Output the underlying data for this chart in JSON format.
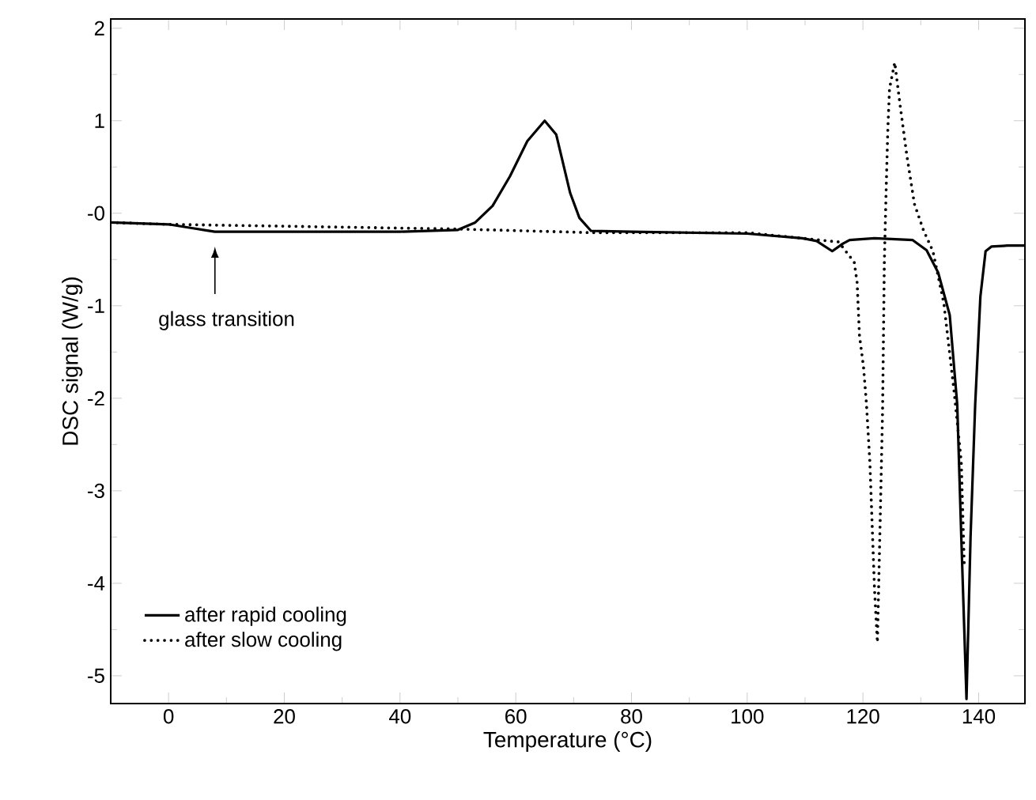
{
  "chart_data": {
    "type": "line",
    "xlabel": "Temperature (°C)",
    "ylabel": "DSC signal (W/g)",
    "xlim": [
      -10,
      148
    ],
    "ylim": [
      -5.3,
      2.1
    ],
    "xticks": [
      0,
      20,
      40,
      60,
      80,
      100,
      120,
      140
    ],
    "yticks": [
      -5,
      -4,
      -3,
      -2,
      -1,
      {
        "value": 0,
        "label": "-0"
      },
      1,
      2
    ],
    "legend": "bottom left",
    "grid": false,
    "marker": "none",
    "annotations": [
      "glass transition"
    ],
    "series": [
      {
        "name": "after rapid cooling",
        "color": "#000000",
        "line_style": "solid",
        "x": [
          -10,
          0,
          4,
          8,
          20,
          40,
          50,
          53,
          56,
          59,
          62,
          65,
          67,
          69.4,
          71,
          73,
          80,
          100,
          109.5,
          112,
          114.7,
          116.5,
          117.7,
          122,
          128.6,
          131,
          133,
          135,
          136.3,
          137,
          137.9,
          138.6,
          139.4,
          140.3,
          141.2,
          142.2,
          145,
          148
        ],
        "values": [
          -0.1,
          -0.12,
          -0.16,
          -0.2,
          -0.2,
          -0.2,
          -0.18,
          -0.1,
          0.08,
          0.4,
          0.78,
          1.0,
          0.85,
          0.22,
          -0.05,
          -0.19,
          -0.2,
          -0.22,
          -0.27,
          -0.3,
          -0.41,
          -0.33,
          -0.29,
          -0.27,
          -0.29,
          -0.4,
          -0.64,
          -1.1,
          -2.07,
          -3.5,
          -5.25,
          -3.5,
          -2.07,
          -0.9,
          -0.41,
          -0.36,
          -0.35,
          -0.35
        ]
      },
      {
        "name": "after slow cooling",
        "color": "#000000",
        "line_style": "dotted",
        "x": [
          -10,
          0,
          10,
          30,
          49.5,
          67.5,
          73,
          100,
          109.5,
          115.8,
          118.5,
          119,
          119.4,
          120.1,
          120.6,
          121.2,
          122,
          122.5,
          123,
          123.4,
          123.7,
          124,
          124.3,
          124.6,
          125.5,
          126.4,
          127.6,
          128.9,
          130.5,
          132.1,
          134,
          135.8,
          137,
          137.5
        ],
        "values": [
          -0.1,
          -0.12,
          -0.13,
          -0.15,
          -0.17,
          -0.2,
          -0.21,
          -0.21,
          -0.27,
          -0.31,
          -0.53,
          -0.75,
          -1.32,
          -1.66,
          -2.05,
          -2.69,
          -4.06,
          -4.64,
          -3.27,
          -2.12,
          -0.53,
          0.22,
          0.9,
          1.35,
          1.63,
          1.18,
          0.62,
          0.1,
          -0.19,
          -0.41,
          -0.98,
          -1.95,
          -2.69,
          -3.78
        ]
      }
    ]
  }
}
